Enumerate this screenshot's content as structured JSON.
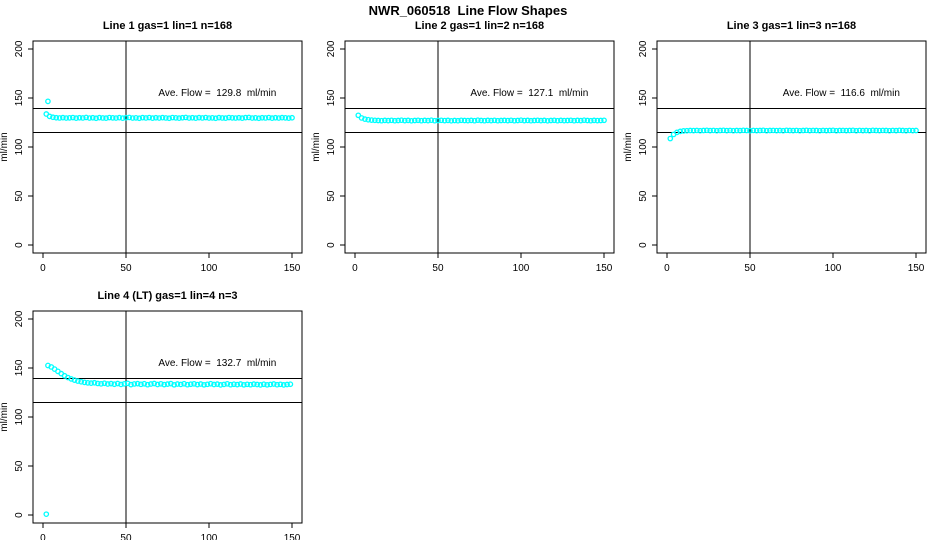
{
  "title": "NWR_060518  Line Flow Shapes",
  "colors": {
    "marker": "#00FFFF",
    "axis": "#000000",
    "background": "#FFFFFF"
  },
  "chart_data": [
    {
      "type": "scatter",
      "title": "Line 1 gas=1 lin=1 n=168",
      "annotation": "Ave. Flow =  129.8  ml/min",
      "ave_flow_ml_min": 129.8,
      "xlabel": "",
      "ylabel": "ml/min",
      "xticks": [
        0,
        50,
        100,
        150
      ],
      "yticks": [
        0,
        50,
        100,
        150,
        200
      ],
      "xlim": [
        -6,
        156
      ],
      "ylim": [
        -8,
        208
      ],
      "grid": false,
      "ref_hlines": [
        139,
        115
      ],
      "ref_vlines": [
        50
      ],
      "marker": {
        "shape": "open-circle",
        "color": "#00FFFF"
      },
      "series": {
        "x0": 2,
        "dx": 2,
        "y": [
          133.6,
          131.2,
          130.3,
          129.8,
          129.6,
          129.9,
          129.5,
          129.7,
          130.0,
          129.4,
          129.8,
          129.6,
          130.1,
          129.5,
          129.8,
          129.3,
          129.9,
          129.6,
          129.4,
          130.0,
          129.7,
          129.5,
          129.9,
          129.4,
          129.8,
          130.1,
          129.5,
          129.7,
          129.3,
          129.9,
          129.6,
          130.0,
          129.4,
          129.8,
          129.5,
          129.9,
          129.6,
          129.3,
          130.0,
          129.7,
          129.4,
          129.8,
          130.1,
          129.5,
          129.8,
          129.4,
          129.9,
          129.6,
          130.0,
          129.5,
          129.7,
          129.3,
          129.9,
          129.6,
          129.4,
          130.0,
          129.7,
          129.5,
          129.8,
          129.4,
          129.9,
          130.1,
          129.5,
          129.7,
          129.3,
          129.8,
          129.6,
          130.0,
          129.4,
          129.8,
          129.5,
          129.9,
          129.7,
          129.4,
          129.8
        ]
      },
      "outliers": [
        [
          3,
          146.5
        ]
      ]
    },
    {
      "type": "scatter",
      "title": "Line 2 gas=1 lin=2 n=168",
      "annotation": "Ave. Flow =  127.1  ml/min",
      "ave_flow_ml_min": 127.1,
      "xlabel": "",
      "ylabel": "ml/min",
      "xticks": [
        0,
        50,
        100,
        150
      ],
      "yticks": [
        0,
        50,
        100,
        150,
        200
      ],
      "xlim": [
        -6,
        156
      ],
      "ylim": [
        -8,
        208
      ],
      "grid": false,
      "ref_hlines": [
        139,
        115
      ],
      "ref_vlines": [
        50
      ],
      "marker": {
        "shape": "open-circle",
        "color": "#00FFFF"
      },
      "series": {
        "x0": 2,
        "dx": 2,
        "y": [
          132.3,
          129.6,
          128.4,
          127.8,
          127.4,
          127.2,
          127.0,
          126.8,
          127.1,
          126.9,
          127.2,
          126.8,
          127.0,
          127.3,
          126.9,
          127.1,
          126.7,
          127.0,
          127.2,
          126.8,
          127.1,
          126.9,
          127.3,
          126.8,
          127.0,
          127.2,
          126.9,
          127.1,
          126.7,
          127.0,
          126.8,
          127.2,
          127.0,
          126.9,
          127.1,
          126.8,
          127.3,
          127.0,
          126.8,
          127.1,
          126.9,
          127.2,
          126.8,
          127.0,
          127.1,
          126.9,
          127.2,
          126.8,
          127.0,
          127.3,
          126.9,
          127.1,
          126.8,
          127.0,
          127.2,
          126.9,
          127.1,
          126.7,
          127.0,
          127.2,
          126.8,
          127.1,
          126.9,
          127.0,
          127.2,
          126.8,
          127.1,
          126.9,
          127.3,
          127.0,
          126.8,
          127.1,
          126.9,
          127.0,
          127.2
        ]
      },
      "outliers": []
    },
    {
      "type": "scatter",
      "title": "Line 3 gas=1 lin=3 n=168",
      "annotation": "Ave. Flow =  116.6  ml/min",
      "ave_flow_ml_min": 116.6,
      "xlabel": "",
      "ylabel": "ml/min",
      "xticks": [
        0,
        50,
        100,
        150
      ],
      "yticks": [
        0,
        50,
        100,
        150,
        200
      ],
      "xlim": [
        -6,
        156
      ],
      "ylim": [
        -8,
        208
      ],
      "grid": false,
      "ref_hlines": [
        139,
        115
      ],
      "ref_vlines": [
        50
      ],
      "marker": {
        "shape": "open-circle",
        "color": "#00FFFF"
      },
      "series": {
        "x0": 2,
        "dx": 2,
        "y": [
          108.6,
          112.8,
          114.9,
          115.9,
          116.4,
          116.6,
          116.8,
          116.7,
          116.9,
          116.6,
          116.8,
          117.0,
          116.7,
          116.9,
          116.6,
          116.8,
          117.0,
          116.7,
          116.9,
          116.6,
          116.8,
          116.7,
          117.0,
          116.8,
          116.6,
          116.9,
          116.7,
          116.8,
          117.0,
          116.6,
          116.8,
          116.9,
          116.7,
          116.8,
          116.6,
          117.0,
          116.8,
          116.7,
          116.9,
          116.6,
          116.8,
          117.0,
          116.7,
          116.9,
          116.8,
          116.6,
          116.9,
          116.7,
          116.8,
          117.0,
          116.6,
          116.8,
          116.9,
          116.7,
          116.8,
          117.0,
          116.6,
          116.9,
          116.7,
          116.8,
          116.6,
          117.0,
          116.8,
          116.7,
          116.9,
          116.8,
          116.6,
          116.9,
          116.7,
          117.0,
          116.8,
          116.6,
          116.9,
          116.7,
          116.8
        ]
      },
      "outliers": []
    },
    {
      "type": "scatter",
      "title": "Line 4 (LT) gas=1 lin=4 n=3",
      "annotation": "Ave. Flow =  132.7  ml/min",
      "ave_flow_ml_min": 132.7,
      "xlabel": "",
      "ylabel": "ml/min",
      "xticks": [
        0,
        50,
        100,
        150
      ],
      "yticks": [
        0,
        50,
        100,
        150,
        200
      ],
      "xlim": [
        -6,
        156
      ],
      "ylim": [
        -8,
        208
      ],
      "grid": false,
      "ref_hlines": [
        139,
        115
      ],
      "ref_vlines": [
        50
      ],
      "marker": {
        "shape": "open-circle",
        "color": "#00FFFF"
      },
      "series": {
        "x0": 3,
        "dx": 2,
        "y": [
          152.5,
          151.0,
          148.8,
          146.5,
          144.2,
          142.0,
          140.2,
          138.8,
          137.6,
          136.6,
          135.9,
          135.3,
          134.8,
          134.5,
          134.9,
          134.2,
          133.8,
          134.4,
          133.6,
          134.0,
          133.4,
          134.1,
          133.2,
          133.8,
          134.3,
          133.0,
          133.7,
          134.0,
          133.3,
          133.9,
          132.9,
          133.6,
          134.1,
          133.1,
          133.8,
          133.0,
          133.5,
          134.0,
          132.8,
          133.6,
          133.2,
          133.9,
          132.9,
          133.4,
          133.8,
          133.0,
          133.6,
          132.8,
          133.3,
          133.9,
          133.1,
          133.5,
          132.7,
          133.2,
          133.8,
          132.9,
          133.4,
          133.0,
          133.6,
          132.8,
          133.3,
          132.9,
          133.5,
          133.1,
          132.7,
          133.4,
          132.8,
          133.2,
          133.6,
          132.9,
          133.3,
          132.7,
          133.1,
          133.4
        ]
      },
      "outliers": [
        [
          2,
          1
        ]
      ]
    }
  ]
}
